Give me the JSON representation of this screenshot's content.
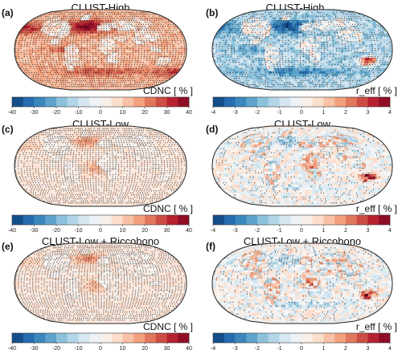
{
  "chart_data": [
    {
      "panel": "(a)",
      "type": "heatmap",
      "title": "CLUST-High",
      "colorbar_label": "CDNC [ % ]",
      "ticks": [
        -40,
        -30,
        -20,
        -10,
        0,
        10,
        20,
        30,
        40
      ],
      "range": [
        -40,
        40
      ],
      "pattern": "strong-increase",
      "stippling": "dense",
      "colormap": {
        "low": "#2166ac",
        "mid": "#f7f7f7",
        "high": "#b2182b"
      }
    },
    {
      "panel": "(b)",
      "type": "heatmap",
      "title": "CLUST-High",
      "colorbar_label": "r_eff [ % ]",
      "ticks": [
        -4,
        -3,
        -2,
        -1,
        0,
        1,
        2,
        3,
        4
      ],
      "range": [
        -4,
        4
      ],
      "pattern": "strong-decrease",
      "stippling": "medium",
      "colormap": {
        "low": "#2166ac",
        "mid": "#f7f7f7",
        "high": "#b2182b"
      }
    },
    {
      "panel": "(c)",
      "type": "heatmap",
      "title": "CLUST-Low",
      "colorbar_label": "CDNC [ % ]",
      "ticks": [
        -40,
        -30,
        -20,
        -10,
        0,
        10,
        20,
        30,
        40
      ],
      "range": [
        -40,
        40
      ],
      "pattern": "weak-increase",
      "stippling": "dense",
      "colormap": {
        "low": "#2166ac",
        "mid": "#f7f7f7",
        "high": "#b2182b"
      }
    },
    {
      "panel": "(d)",
      "type": "heatmap",
      "title": "CLUST-Low",
      "colorbar_label": "r_eff [ % ]",
      "ticks": [
        -4,
        -3,
        -2,
        -1,
        0,
        1,
        2,
        3,
        4
      ],
      "range": [
        -4,
        4
      ],
      "pattern": "mixed",
      "stippling": "sparse",
      "colormap": {
        "low": "#2166ac",
        "mid": "#f7f7f7",
        "high": "#b2182b"
      }
    },
    {
      "panel": "(e)",
      "type": "heatmap",
      "title": "CLUST-Low + Riccobono",
      "colorbar_label": "CDNC [ % ]",
      "ticks": [
        -40,
        -30,
        -20,
        -10,
        0,
        10,
        20,
        30,
        40
      ],
      "range": [
        -40,
        40
      ],
      "pattern": "weak-increase",
      "stippling": "dense",
      "colormap": {
        "low": "#2166ac",
        "mid": "#f7f7f7",
        "high": "#b2182b"
      }
    },
    {
      "panel": "(f)",
      "type": "heatmap",
      "title": "CLUST-Low + Riccobono",
      "colorbar_label": "r_eff [ % ]",
      "ticks": [
        -4,
        -3,
        -2,
        -1,
        0,
        1,
        2,
        3,
        4
      ],
      "range": [
        -4,
        4
      ],
      "pattern": "mixed",
      "stippling": "sparse",
      "colormap": {
        "low": "#2166ac",
        "mid": "#f7f7f7",
        "high": "#b2182b"
      }
    }
  ]
}
